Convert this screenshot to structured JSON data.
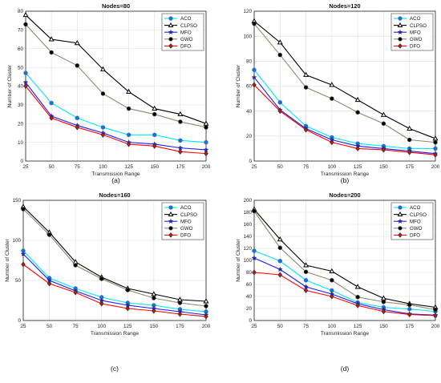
{
  "chart_data": [
    {
      "type": "line",
      "title": "Nodes=80",
      "xlabel": "Transmission Range",
      "ylabel": "Number of Cluster",
      "caption": "(a)",
      "x": [
        25,
        50,
        75,
        100,
        125,
        150,
        175,
        200
      ],
      "xticks": [
        25,
        50,
        75,
        100,
        125,
        150,
        175,
        200
      ],
      "ylim": [
        0,
        80
      ],
      "yticks": [
        0,
        10,
        20,
        30,
        40,
        50,
        60,
        70,
        80
      ],
      "grid": true,
      "legend": "top-right",
      "series": [
        {
          "name": "ACO",
          "values": [
            47,
            31,
            23,
            18,
            14,
            14,
            11,
            10
          ]
        },
        {
          "name": "CLPSO",
          "values": [
            78,
            65,
            63,
            49,
            37,
            28,
            25,
            20
          ]
        },
        {
          "name": "MFO",
          "values": [
            42,
            24,
            19,
            15,
            10,
            9,
            7,
            6
          ]
        },
        {
          "name": "GWO",
          "values": [
            73,
            58,
            51,
            36,
            28,
            25,
            21,
            18
          ]
        },
        {
          "name": "DFO",
          "values": [
            40,
            23,
            18,
            14,
            9,
            8,
            5,
            4
          ]
        }
      ]
    },
    {
      "type": "line",
      "title": "Nodes=120",
      "xlabel": "Transmission Range",
      "ylabel": "Number of Cluster",
      "caption": "(b)",
      "x": [
        25,
        50,
        75,
        100,
        125,
        150,
        175,
        200
      ],
      "xticks": [
        25,
        50,
        75,
        100,
        125,
        150,
        175,
        200
      ],
      "ylim": [
        0,
        120
      ],
      "yticks": [
        0,
        20,
        40,
        60,
        80,
        100,
        120
      ],
      "grid": true,
      "legend": "top-right",
      "series": [
        {
          "name": "ACO",
          "values": [
            73,
            47,
            28,
            19,
            14,
            12,
            10,
            10
          ]
        },
        {
          "name": "CLPSO",
          "values": [
            112,
            95,
            69,
            61,
            49,
            37,
            26,
            18
          ]
        },
        {
          "name": "MFO",
          "values": [
            67,
            41,
            26,
            17,
            12,
            10,
            8,
            6
          ]
        },
        {
          "name": "GWO",
          "values": [
            110,
            85,
            59,
            50,
            39,
            30,
            17,
            15
          ]
        },
        {
          "name": "DFO",
          "values": [
            61,
            40,
            25,
            15,
            10,
            9,
            7,
            5
          ]
        }
      ]
    },
    {
      "type": "line",
      "title": "Nodes=160",
      "xlabel": "Transmission Range",
      "ylabel": "Number of Cluster",
      "caption": "(c)",
      "x": [
        25,
        50,
        75,
        100,
        125,
        150,
        175,
        200
      ],
      "xticks": [
        25,
        50,
        75,
        100,
        125,
        150,
        175,
        200
      ],
      "ylim": [
        0,
        150
      ],
      "yticks": [
        0,
        50,
        100,
        150
      ],
      "grid": true,
      "legend": "top-right",
      "series": [
        {
          "name": "ACO",
          "values": [
            87,
            53,
            40,
            29,
            22,
            19,
            14,
            11
          ]
        },
        {
          "name": "CLPSO",
          "values": [
            142,
            110,
            73,
            54,
            40,
            33,
            26,
            24
          ]
        },
        {
          "name": "MFO",
          "values": [
            83,
            50,
            37,
            25,
            19,
            15,
            11,
            7
          ]
        },
        {
          "name": "GWO",
          "values": [
            139,
            107,
            69,
            52,
            38,
            28,
            22,
            18
          ]
        },
        {
          "name": "DFO",
          "values": [
            70,
            46,
            35,
            21,
            15,
            12,
            8,
            5
          ]
        }
      ]
    },
    {
      "type": "line",
      "title": "Nodes=200",
      "xlabel": "Transmission Range",
      "ylabel": "Number of Cluster",
      "caption": "(d)",
      "x": [
        25,
        50,
        75,
        100,
        125,
        150,
        175,
        200
      ],
      "xticks": [
        25,
        50,
        75,
        100,
        125,
        150,
        175,
        200
      ],
      "ylim": [
        0,
        200
      ],
      "yticks": [
        0,
        20,
        40,
        60,
        80,
        100,
        120,
        140,
        160,
        180,
        200
      ],
      "grid": true,
      "legend": "top-right",
      "series": [
        {
          "name": "ACO",
          "values": [
            116,
            99,
            67,
            50,
            30,
            22,
            19,
            15
          ]
        },
        {
          "name": "CLPSO",
          "values": [
            185,
            135,
            92,
            82,
            56,
            37,
            28,
            22
          ]
        },
        {
          "name": "MFO",
          "values": [
            104,
            85,
            56,
            44,
            28,
            18,
            11,
            9
          ]
        },
        {
          "name": "GWO",
          "values": [
            182,
            121,
            81,
            67,
            39,
            31,
            26,
            18
          ]
        },
        {
          "name": "DFO",
          "values": [
            80,
            76,
            50,
            40,
            25,
            15,
            10,
            8
          ]
        }
      ]
    }
  ],
  "series_styles": {
    "ACO": {
      "color": "#00e5ff",
      "marker": "circle",
      "marker_color": "#1f6fd1"
    },
    "CLPSO": {
      "color": "#000000",
      "marker": "triangle",
      "marker_color": "#ffffff"
    },
    "MFO": {
      "color": "#1a1aff",
      "marker": "star",
      "marker_color": "#1a1aff"
    },
    "GWO": {
      "color": "#8a8a6a",
      "marker": "circle",
      "marker_color": "#000000"
    },
    "DFO": {
      "color": "#ff0000",
      "marker": "diamond",
      "marker_color": "#cc1111"
    }
  }
}
